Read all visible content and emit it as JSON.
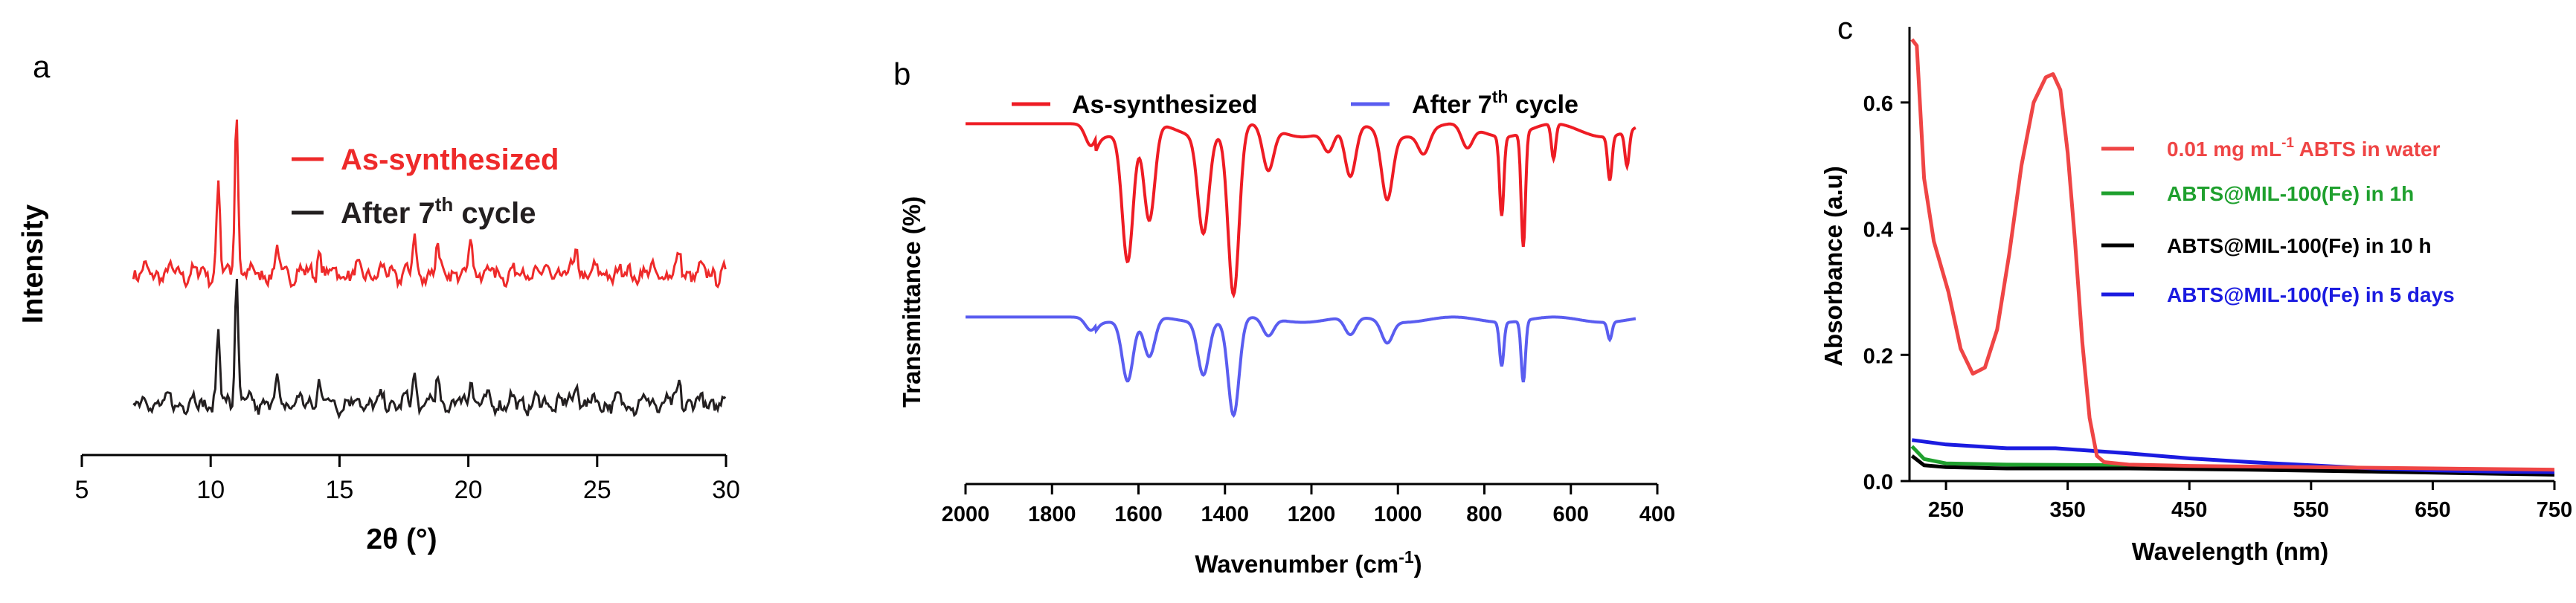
{
  "chart_data": [
    {
      "panel": "a",
      "type": "line",
      "title": "",
      "xlabel": "2θ (°)",
      "ylabel": "Intensity",
      "xlim": [
        5,
        30
      ],
      "xticks": [
        5,
        10,
        15,
        20,
        25,
        30
      ],
      "ylim": [
        0,
        1
      ],
      "yticks": [],
      "grid": false,
      "legend_position": "top-center",
      "series": [
        {
          "name": "As-synthesized",
          "color": "#ee2a2a",
          "offset": 0.42,
          "x_range": [
            7,
            30
          ],
          "baseline": 0.03,
          "peaks": [
            [
              10.3,
              0.22
            ],
            [
              11.0,
              0.38
            ],
            [
              12.6,
              0.05
            ],
            [
              14.2,
              0.06
            ],
            [
              17.9,
              0.08
            ],
            [
              18.8,
              0.06
            ],
            [
              20.1,
              0.1
            ],
            [
              24.2,
              0.06
            ],
            [
              28.2,
              0.04
            ]
          ]
        },
        {
          "name": "After 7",
          "name_superscript": "th",
          "name_suffix": " cycle",
          "color": "#231f20",
          "offset": 0.12,
          "x_range": [
            7,
            30
          ],
          "baseline": 0.03,
          "peaks": [
            [
              10.3,
              0.16
            ],
            [
              11.0,
              0.3
            ],
            [
              12.6,
              0.05
            ],
            [
              14.2,
              0.06
            ],
            [
              17.9,
              0.07
            ],
            [
              18.8,
              0.05
            ],
            [
              20.1,
              0.08
            ],
            [
              24.2,
              0.06
            ],
            [
              28.2,
              0.05
            ]
          ]
        }
      ]
    },
    {
      "panel": "b",
      "type": "line",
      "title": "",
      "xlabel": "Wavenumber (cm",
      "xlabel_superscript": "-1",
      "xlabel_suffix": ")",
      "ylabel": "Transmittance (%)",
      "xlim": [
        2000,
        400
      ],
      "xticks": [
        2000,
        1800,
        1600,
        1400,
        1200,
        1000,
        800,
        600,
        400
      ],
      "ylim": [
        0,
        1
      ],
      "yticks": [],
      "grid": false,
      "legend_position": "top",
      "series": [
        {
          "name": "As-synthesized",
          "color": "#ee1c24",
          "offset": 0.82,
          "x_range": [
            2000,
            450
          ],
          "bands": [
            [
              1710,
              0.05
            ],
            [
              1625,
              0.3
            ],
            [
              1575,
              0.22
            ],
            [
              1450,
              0.22
            ],
            [
              1380,
              0.38
            ],
            [
              1300,
              0.1
            ],
            [
              1160,
              0.05
            ],
            [
              1110,
              0.12
            ],
            [
              1025,
              0.15
            ],
            [
              940,
              0.05
            ],
            [
              840,
              0.05
            ],
            [
              760,
              0.18
            ],
            [
              710,
              0.26
            ],
            [
              640,
              0.08
            ],
            [
              510,
              0.1
            ],
            [
              470,
              0.08
            ]
          ]
        },
        {
          "name": "After 7",
          "name_superscript": "th",
          "name_suffix": " cycle",
          "color": "#5a5df0",
          "offset": 0.38,
          "x_range": [
            2000,
            450
          ],
          "bands": [
            [
              1710,
              0.03
            ],
            [
              1625,
              0.14
            ],
            [
              1575,
              0.09
            ],
            [
              1450,
              0.12
            ],
            [
              1380,
              0.22
            ],
            [
              1300,
              0.04
            ],
            [
              1110,
              0.04
            ],
            [
              1025,
              0.05
            ],
            [
              760,
              0.1
            ],
            [
              710,
              0.14
            ],
            [
              510,
              0.04
            ]
          ]
        }
      ]
    },
    {
      "panel": "c",
      "type": "line",
      "title": "",
      "xlabel": "Wavelength (nm)",
      "ylabel": "Absorbance (a.u)",
      "xlim": [
        220,
        750
      ],
      "xticks": [
        250,
        350,
        450,
        550,
        650,
        750
      ],
      "ylim": [
        0,
        0.72
      ],
      "yticks": [
        0.0,
        0.2,
        0.4,
        0.6
      ],
      "grid": false,
      "legend_position": "right",
      "series": [
        {
          "name": "0.01 mg mL",
          "name_superscript": "-1",
          "name_suffix": " ABTS in water",
          "color": "#ef4545",
          "x": [
            222,
            226,
            232,
            240,
            252,
            262,
            272,
            282,
            292,
            302,
            312,
            322,
            332,
            338,
            344,
            350,
            356,
            362,
            368,
            374,
            380,
            400,
            450,
            550,
            650,
            750
          ],
          "y": [
            0.7,
            0.69,
            0.48,
            0.38,
            0.3,
            0.21,
            0.17,
            0.18,
            0.24,
            0.36,
            0.5,
            0.6,
            0.64,
            0.645,
            0.62,
            0.52,
            0.38,
            0.22,
            0.1,
            0.04,
            0.03,
            0.026,
            0.024,
            0.022,
            0.02,
            0.018
          ]
        },
        {
          "name": "ABTS@MIL-100(Fe) in 1h",
          "color": "#1fa02e",
          "x": [
            222,
            232,
            250,
            300,
            400,
            500,
            600,
            750
          ],
          "y": [
            0.055,
            0.035,
            0.028,
            0.026,
            0.025,
            0.022,
            0.02,
            0.015
          ]
        },
        {
          "name": "ABTS@MIL-100(Fe) in 10 h",
          "color": "#000000",
          "x": [
            222,
            232,
            250,
            300,
            400,
            500,
            600,
            750
          ],
          "y": [
            0.04,
            0.025,
            0.022,
            0.02,
            0.02,
            0.018,
            0.015,
            0.01
          ]
        },
        {
          "name": "ABTS@MIL-100(Fe) in  5 days",
          "color": "#1b1be0",
          "x": [
            222,
            250,
            300,
            340,
            400,
            450,
            500,
            550,
            600,
            650,
            700,
            750
          ],
          "y": [
            0.065,
            0.058,
            0.052,
            0.052,
            0.044,
            0.036,
            0.03,
            0.025,
            0.02,
            0.017,
            0.015,
            0.014
          ]
        }
      ]
    }
  ]
}
